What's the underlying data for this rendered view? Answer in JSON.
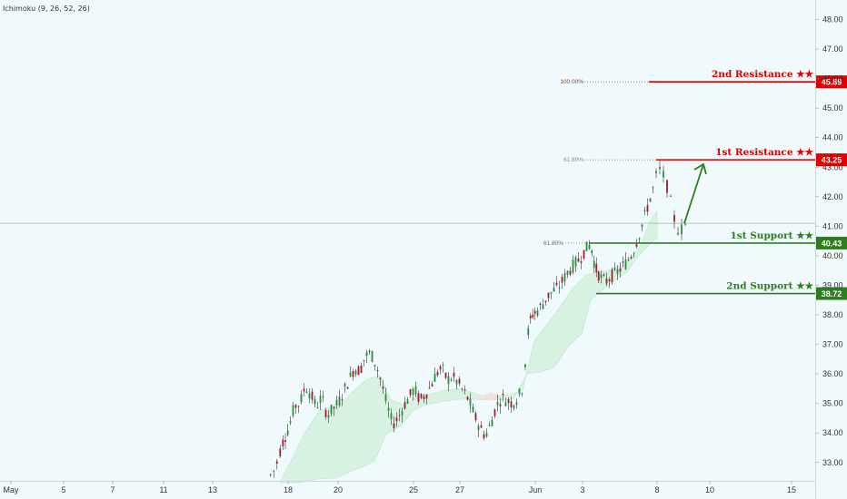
{
  "indicator_label": "Ichimoku (9, 26, 52, 26)",
  "colors": {
    "background": "#f0fafd",
    "up": "#2f8a3a",
    "down": "#a11d2a",
    "wick": "#333333",
    "cloud": "#d4f0dc",
    "cloud_red": "#f2dede",
    "resistance": "#e00000",
    "support": "#2f7d1f",
    "arrow": "#2f7d1f",
    "current_price_line": "#9cb7b1",
    "fib_text": "#7a4a2a",
    "fib_text2": "#8a8a8a",
    "fib_text3": "#7a5a5a",
    "axis_text": "#333333"
  },
  "chart_data": {
    "type": "candlestick",
    "ylim": [
      32.4,
      48.5
    ],
    "y_ticks": [
      "33.00",
      "34.00",
      "35.00",
      "36.00",
      "37.00",
      "38.00",
      "39.00",
      "40.00",
      "41.00",
      "42.00",
      "43.00",
      "44.00",
      "45.00",
      "46.00",
      "47.00",
      "48.00"
    ],
    "x_ticks": [
      "May",
      "5",
      "7",
      "11",
      "13",
      "18",
      "20",
      "25",
      "27",
      "Jun",
      "3",
      "8",
      "10",
      "15"
    ],
    "current_price": 41.1,
    "levels": [
      {
        "label": "2nd Resistance ★★",
        "price": 45.89,
        "price_text": "45.89",
        "kind": "resistance",
        "fib": "100.00%"
      },
      {
        "label": "1st Resistance ★★",
        "price": 43.25,
        "price_text": "43.25",
        "kind": "resistance",
        "fib": "61.80%"
      },
      {
        "label": "1st Support ★★",
        "price": 40.43,
        "price_text": "40.43",
        "kind": "support",
        "fib": "61.80%"
      },
      {
        "label": "2nd Support ★★",
        "price": 38.72,
        "price_text": "38.72",
        "kind": "support",
        "fib": ""
      }
    ],
    "arrow": {
      "from_price": 41.1,
      "to_price": 43.1
    }
  }
}
